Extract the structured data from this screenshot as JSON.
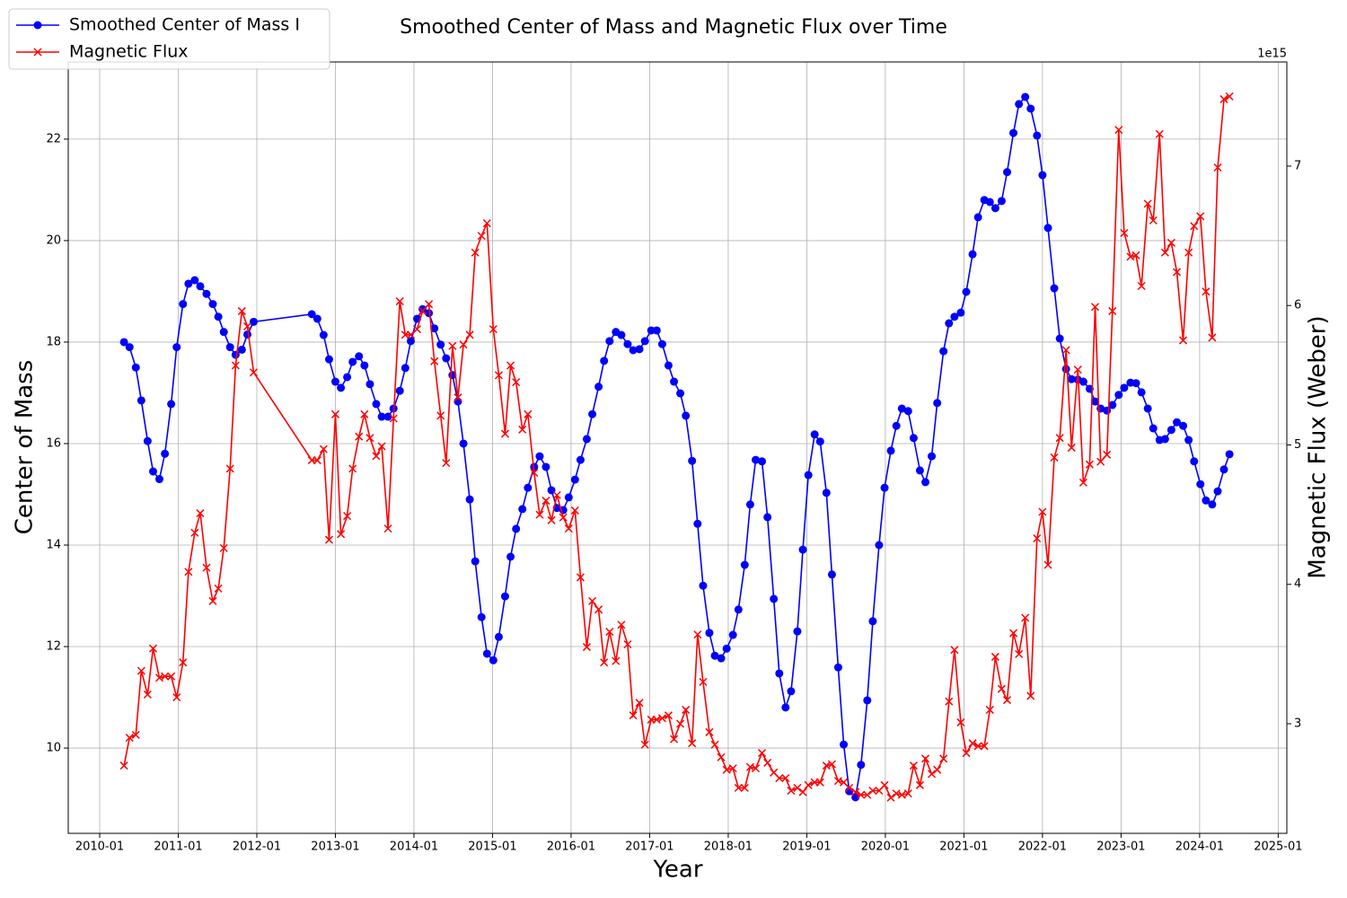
{
  "chart_data": {
    "type": "line",
    "title": "Smoothed Center of Mass and Magnetic Flux over Time",
    "xlabel": "Year",
    "ylabel": "Center of Mass",
    "y2label": "Magnetic Flux (Weber)",
    "y2_offset_label": "1e15",
    "legend": "upper left",
    "grid": true,
    "xlim": [
      2009.6,
      2025.11
    ],
    "xticks": [
      {
        "value": 2010,
        "label": "2010-01"
      },
      {
        "value": 2011,
        "label": "2011-01"
      },
      {
        "value": 2012,
        "label": "2012-01"
      },
      {
        "value": 2013,
        "label": "2013-01"
      },
      {
        "value": 2014,
        "label": "2014-01"
      },
      {
        "value": 2015,
        "label": "2015-01"
      },
      {
        "value": 2016,
        "label": "2016-01"
      },
      {
        "value": 2017,
        "label": "2017-01"
      },
      {
        "value": 2018,
        "label": "2018-01"
      },
      {
        "value": 2019,
        "label": "2019-01"
      },
      {
        "value": 2020,
        "label": "2020-01"
      },
      {
        "value": 2021,
        "label": "2021-01"
      },
      {
        "value": 2022,
        "label": "2022-01"
      },
      {
        "value": 2023,
        "label": "2023-01"
      },
      {
        "value": 2024,
        "label": "2024-01"
      },
      {
        "value": 2025,
        "label": "2025-01"
      }
    ],
    "ylim": [
      8.32,
      23.52
    ],
    "yticks": [
      10,
      12,
      14,
      16,
      18,
      20,
      22
    ],
    "y2lim": [
      2214000000000000.0,
      7747000000000000.0
    ],
    "y2ticks": [
      {
        "value": 3000000000000000.0,
        "label": "3"
      },
      {
        "value": 4000000000000000.0,
        "label": "4"
      },
      {
        "value": 5000000000000000.0,
        "label": "5"
      },
      {
        "value": 6000000000000000.0,
        "label": "6"
      },
      {
        "value": 7000000000000000.0,
        "label": "7"
      }
    ],
    "x": [
      2010.31,
      2010.38,
      2010.46,
      2010.53,
      2010.61,
      2010.68,
      2010.76,
      2010.83,
      2010.91,
      2010.98,
      2011.06,
      2011.13,
      2011.21,
      2011.28,
      2011.36,
      2011.44,
      2011.51,
      2011.58,
      2011.66,
      2011.73,
      2011.81,
      2011.88,
      2011.96,
      2012.7,
      2012.77,
      2012.85,
      2012.92,
      2013.0,
      2013.07,
      2013.15,
      2013.22,
      2013.3,
      2013.37,
      2013.44,
      2013.52,
      2013.59,
      2013.67,
      2013.74,
      2013.82,
      2013.89,
      2013.96,
      2014.04,
      2014.11,
      2014.19,
      2014.26,
      2014.34,
      2014.41,
      2014.49,
      2014.56,
      2014.63,
      2014.71,
      2014.78,
      2014.86,
      2014.93,
      2015.01,
      2015.08,
      2015.16,
      2015.23,
      2015.3,
      2015.38,
      2015.45,
      2015.53,
      2015.6,
      2015.68,
      2015.75,
      2015.82,
      2015.9,
      2015.97,
      2016.05,
      2016.12,
      2016.2,
      2016.27,
      2016.35,
      2016.42,
      2016.49,
      2016.57,
      2016.64,
      2016.72,
      2016.79,
      2016.87,
      2016.94,
      2017.02,
      2017.09,
      2017.16,
      2017.24,
      2017.31,
      2017.39,
      2017.46,
      2017.54,
      2017.61,
      2017.68,
      2017.76,
      2017.83,
      2017.91,
      2017.98,
      2018.06,
      2018.13,
      2018.21,
      2018.28,
      2018.35,
      2018.43,
      2018.5,
      2018.58,
      2018.65,
      2018.73,
      2018.8,
      2018.88,
      2018.95,
      2019.02,
      2019.1,
      2019.17,
      2019.25,
      2019.32,
      2019.4,
      2019.47,
      2019.54,
      2019.62,
      2019.69,
      2019.77,
      2019.84,
      2019.92,
      2019.99,
      2020.07,
      2020.14,
      2020.21,
      2020.29,
      2020.36,
      2020.44,
      2020.51,
      2020.59,
      2020.66,
      2020.74,
      2020.81,
      2020.88,
      2020.96,
      2021.03,
      2021.11,
      2021.18,
      2021.26,
      2021.33,
      2021.4,
      2021.48,
      2021.55,
      2021.63,
      2021.7,
      2021.78,
      2021.85,
      2021.93,
      2022.0,
      2022.07,
      2022.15,
      2022.22,
      2022.3,
      2022.37,
      2022.45,
      2022.52,
      2022.6,
      2022.67,
      2022.74,
      2022.82,
      2022.89,
      2022.97,
      2023.04,
      2023.12,
      2023.19,
      2023.26,
      2023.34,
      2023.41,
      2023.49,
      2023.56,
      2023.64,
      2023.71,
      2023.79,
      2023.86,
      2023.93,
      2024.01,
      2024.08,
      2024.16,
      2024.23,
      2024.31,
      2024.38
    ],
    "series": [
      {
        "name": "Smoothed Center of Mass I",
        "color": "#0000ff",
        "marker": "o",
        "axis": "y",
        "values": [
          18.0,
          17.9,
          17.5,
          16.85,
          16.05,
          15.45,
          15.3,
          15.8,
          16.78,
          17.9,
          18.75,
          19.15,
          19.22,
          19.1,
          18.95,
          18.75,
          18.5,
          18.2,
          17.9,
          17.75,
          17.85,
          18.15,
          18.4,
          18.55,
          18.46,
          18.14,
          17.66,
          17.22,
          17.1,
          17.31,
          17.61,
          17.72,
          17.54,
          17.17,
          16.78,
          16.53,
          16.53,
          16.69,
          17.04,
          17.49,
          18.02,
          18.46,
          18.65,
          18.57,
          18.27,
          17.95,
          17.68,
          17.35,
          16.83,
          16.0,
          14.9,
          13.68,
          12.58,
          11.86,
          11.73,
          12.19,
          12.99,
          13.77,
          14.32,
          14.71,
          15.13,
          15.54,
          15.75,
          15.54,
          15.08,
          14.73,
          14.69,
          14.94,
          15.29,
          15.68,
          16.09,
          16.58,
          17.12,
          17.63,
          18.02,
          18.2,
          18.14,
          17.96,
          17.84,
          17.86,
          18.02,
          18.23,
          18.23,
          17.96,
          17.54,
          17.22,
          16.99,
          16.55,
          15.66,
          14.42,
          13.2,
          12.27,
          11.82,
          11.77,
          11.96,
          12.23,
          12.73,
          13.61,
          14.8,
          15.68,
          15.65,
          14.55,
          12.94,
          11.47,
          10.8,
          11.12,
          12.3,
          13.91,
          15.38,
          16.18,
          16.04,
          15.03,
          13.42,
          11.59,
          10.07,
          9.15,
          9.03,
          9.67,
          10.94,
          12.5,
          14.0,
          15.13,
          15.86,
          16.35,
          16.69,
          16.64,
          16.11,
          15.47,
          15.24,
          15.75,
          16.8,
          17.82,
          18.37,
          18.5,
          18.58,
          18.99,
          19.73,
          20.46,
          20.8,
          20.76,
          20.64,
          20.78,
          21.35,
          22.12,
          22.69,
          22.83,
          22.6,
          22.07,
          21.29,
          20.25,
          19.06,
          18.07,
          17.47,
          17.27,
          17.26,
          17.22,
          17.08,
          16.83,
          16.69,
          16.65,
          16.76,
          16.96,
          17.1,
          17.2,
          17.19,
          17.01,
          16.69,
          16.3,
          16.07,
          16.09,
          16.27,
          16.42,
          16.35,
          16.07,
          15.65,
          15.2,
          14.88,
          14.8,
          15.06,
          15.49,
          15.79
        ]
      },
      {
        "name": "Magnetic Flux",
        "color": "#ff0000",
        "marker": "x",
        "axis": "y2",
        "values": [
          2700000000000000.0,
          2900000000000000.0,
          2920000000000000.0,
          3380000000000000.0,
          3210000000000000.0,
          3540000000000000.0,
          3330000000000000.0,
          3340000000000000.0,
          3340000000000000.0,
          3190000000000000.0,
          3440000000000000.0,
          4090000000000000.0,
          4370000000000000.0,
          4510000000000000.0,
          4120000000000000.0,
          3880000000000000.0,
          3970000000000000.0,
          4260000000000000.0,
          4830000000000000.0,
          5570000000000000.0,
          5960000000000000.0,
          5850000000000000.0,
          5520000000000000.0,
          4890000000000000.0,
          4890000000000000.0,
          4970000000000000.0,
          4320000000000000.0,
          5220000000000000.0,
          4360000000000000.0,
          4490000000000000.0,
          4830000000000000.0,
          5060000000000000.0,
          5220000000000000.0,
          5050000000000000.0,
          4920000000000000.0,
          4990000000000000.0,
          4400000000000000.0,
          5190000000000000.0,
          6030000000000000.0,
          5790000000000000.0,
          5790000000000000.0,
          5830000000000000.0,
          5960000000000000.0,
          6010000000000000.0,
          5600000000000000.0,
          5210000000000000.0,
          4870000000000000.0,
          5710000000000000.0,
          5340000000000000.0,
          5720000000000000.0,
          5790000000000000.0,
          6380000000000000.0,
          6500000000000000.0,
          6590000000000000.0,
          5830000000000000.0,
          5500000000000000.0,
          5080000000000000.0,
          5570000000000000.0,
          5450000000000000.0,
          5110000000000000.0,
          5220000000000000.0,
          4800000000000000.0,
          4500000000000000.0,
          4600000000000000.0,
          4460000000000000.0,
          4640000000000000.0,
          4480000000000000.0,
          4400000000000000.0,
          4530000000000000.0,
          4050000000000000.0,
          3550000000000000.0,
          3880000000000000.0,
          3820000000000000.0,
          3440000000000000.0,
          3660000000000000.0,
          3450000000000000.0,
          3710000000000000.0,
          3570000000000000.0,
          3060000000000000.0,
          3150000000000000.0,
          2850000000000000.0,
          3030000000000000.0,
          3030000000000000.0,
          3040000000000000.0,
          3060000000000000.0,
          2890000000000000.0,
          3000000000000000.0,
          3100000000000000.0,
          2860000000000000.0,
          3640000000000000.0,
          3300000000000000.0,
          2940000000000000.0,
          2850000000000000.0,
          2760000000000000.0,
          2670000000000000.0,
          2680000000000000.0,
          2540000000000000.0,
          2540000000000000.0,
          2690000000000000.0,
          2680000000000000.0,
          2790000000000000.0,
          2720000000000000.0,
          2650000000000000.0,
          2610000000000000.0,
          2610000000000000.0,
          2520000000000000.0,
          2540000000000000.0,
          2510000000000000.0,
          2560000000000000.0,
          2580000000000000.0,
          2580000000000000.0,
          2700000000000000.0,
          2710000000000000.0,
          2590000000000000.0,
          2580000000000000.0,
          2540000000000000.0,
          2510000000000000.0,
          2490000000000000.0,
          2490000000000000.0,
          2520000000000000.0,
          2520000000000000.0,
          2560000000000000.0,
          2470000000000000.0,
          2500000000000000.0,
          2490000000000000.0,
          2500000000000000.0,
          2700000000000000.0,
          2560000000000000.0,
          2750000000000000.0,
          2640000000000000.0,
          2670000000000000.0,
          2750000000000000.0,
          3160000000000000.0,
          3530000000000000.0,
          3010000000000000.0,
          2790000000000000.0,
          2860000000000000.0,
          2840000000000000.0,
          2840000000000000.0,
          3100000000000000.0,
          3480000000000000.0,
          3250000000000000.0,
          3170000000000000.0,
          3650000000000000.0,
          3500000000000000.0,
          3760000000000000.0,
          3200000000000000.0,
          4330000000000000.0,
          4520000000000000.0,
          4140000000000000.0,
          4910000000000000.0,
          5050000000000000.0,
          5680000000000000.0,
          4980000000000000.0,
          5540000000000000.0,
          4730000000000000.0,
          4860000000000000.0,
          5990000000000000.0,
          4880000000000000.0,
          4930000000000000.0,
          5960000000000000.0,
          7260000000000000.0,
          6520000000000000.0,
          6350000000000000.0,
          6360000000000000.0,
          6140000000000000.0,
          6730000000000000.0,
          6610000000000000.0,
          7230000000000000.0,
          6380000000000000.0,
          6450000000000000.0,
          6240000000000000.0,
          5750000000000000.0,
          6380000000000000.0,
          6570000000000000.0,
          6640000000000000.0,
          6100000000000000.0,
          5770000000000000.0,
          6990000000000000.0,
          7480000000000000.0,
          7500000000000000.0
        ]
      }
    ]
  }
}
